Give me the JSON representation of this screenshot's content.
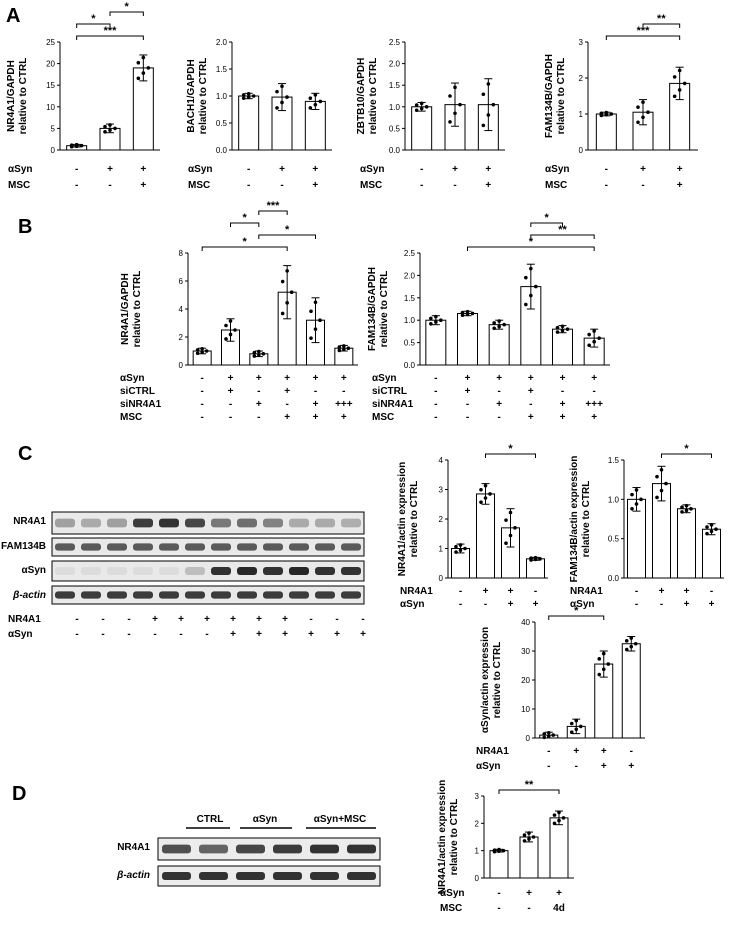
{
  "panels": {
    "A": "A",
    "B": "B",
    "C": "C",
    "D": "D"
  },
  "charts": [
    {
      "id": "A1",
      "ylabel_lines": [
        "NR4A1/GAPDH",
        "relative to CTRL"
      ],
      "yticks": [
        "0",
        "5",
        "10",
        "15",
        "20",
        "25"
      ],
      "ylim": [
        0,
        25
      ],
      "values": [
        1.0,
        5.0,
        19.0
      ],
      "err": [
        0.3,
        1.0,
        3.0
      ],
      "rows": [
        {
          "label": "αSyn",
          "marks": [
            "-",
            "+",
            "+"
          ]
        },
        {
          "label": "MSC",
          "marks": [
            "-",
            "-",
            "+"
          ]
        }
      ],
      "sig": [
        {
          "a": 0,
          "b": 2,
          "text": "***"
        },
        {
          "a": 0,
          "b": 1,
          "text": "*"
        },
        {
          "a": 1,
          "b": 2,
          "text": "*"
        }
      ]
    },
    {
      "id": "A2",
      "ylabel_lines": [
        "BACH1/GAPDH",
        "relative to CTRL"
      ],
      "yticks": [
        "0.0",
        "0.5",
        "1.0",
        "1.5",
        "2.0"
      ],
      "ylim": [
        0,
        2
      ],
      "values": [
        1.0,
        0.98,
        0.9
      ],
      "err": [
        0.05,
        0.25,
        0.15
      ],
      "rows": [
        {
          "label": "αSyn",
          "marks": [
            "-",
            "+",
            "+"
          ]
        },
        {
          "label": "MSC",
          "marks": [
            "-",
            "-",
            "+"
          ]
        }
      ],
      "sig": []
    },
    {
      "id": "A3",
      "ylabel_lines": [
        "ZBTB10/GAPDH",
        "relative to CTRL"
      ],
      "yticks": [
        "0.0",
        "0.5",
        "1.0",
        "1.5",
        "2.0",
        "2.5"
      ],
      "ylim": [
        0,
        2.5
      ],
      "values": [
        1.0,
        1.05,
        1.05
      ],
      "err": [
        0.1,
        0.5,
        0.6
      ],
      "rows": [
        {
          "label": "αSyn",
          "marks": [
            "-",
            "+",
            "+"
          ]
        },
        {
          "label": "MSC",
          "marks": [
            "-",
            "-",
            "+"
          ]
        }
      ],
      "sig": []
    },
    {
      "id": "A4",
      "ylabel_lines": [
        "FAM134B/GAPDH",
        "relative to CTRL"
      ],
      "yticks": [
        "0",
        "1",
        "2",
        "3"
      ],
      "ylim": [
        0,
        3
      ],
      "values": [
        1.0,
        1.05,
        1.85
      ],
      "err": [
        0.05,
        0.35,
        0.45
      ],
      "rows": [
        {
          "label": "αSyn",
          "marks": [
            "-",
            "+",
            "+"
          ]
        },
        {
          "label": "MSC",
          "marks": [
            "-",
            "-",
            "+"
          ]
        }
      ],
      "sig": [
        {
          "a": 0,
          "b": 2,
          "text": "***"
        },
        {
          "a": 1,
          "b": 2,
          "text": "**"
        }
      ]
    },
    {
      "id": "B1",
      "ylabel_lines": [
        "NR4A1/GAPDH",
        "relative to CTRL"
      ],
      "yticks": [
        "0",
        "2",
        "4",
        "6",
        "8"
      ],
      "ylim": [
        0,
        8
      ],
      "values": [
        1.0,
        2.5,
        0.8,
        5.2,
        3.2,
        1.2
      ],
      "err": [
        0.2,
        0.8,
        0.2,
        1.9,
        1.6,
        0.2
      ],
      "rows": [
        {
          "label": "αSyn",
          "marks": [
            "-",
            "+",
            "+",
            "+",
            "+",
            "+"
          ]
        },
        {
          "label": "siCTRL",
          "marks": [
            "-",
            "+",
            "-",
            "+",
            "-",
            "-"
          ]
        },
        {
          "label": "siNR4A1",
          "marks": [
            "-",
            "-",
            "+",
            "-",
            "+",
            "+++"
          ]
        },
        {
          "label": "MSC",
          "marks": [
            "-",
            "-",
            "-",
            "+",
            "+",
            "+"
          ]
        }
      ],
      "sig": [
        {
          "a": 0,
          "b": 3,
          "text": "*"
        },
        {
          "a": 2,
          "b": 4,
          "text": "*"
        },
        {
          "a": 1,
          "b": 2,
          "text": "*"
        },
        {
          "a": 2,
          "b": 3,
          "text": "***"
        }
      ]
    },
    {
      "id": "B2",
      "ylabel_lines": [
        "FAM134B/GAPDH",
        "relative to CTRL"
      ],
      "yticks": [
        "0.0",
        "0.5",
        "1.0",
        "1.5",
        "2.0",
        "2.5"
      ],
      "ylim": [
        0,
        2.5
      ],
      "values": [
        1.0,
        1.15,
        0.9,
        1.75,
        0.8,
        0.6
      ],
      "err": [
        0.1,
        0.05,
        0.1,
        0.5,
        0.08,
        0.2
      ],
      "rows": [
        {
          "label": "αSyn",
          "marks": [
            "-",
            "+",
            "+",
            "+",
            "+",
            "+"
          ]
        },
        {
          "label": "siCTRL",
          "marks": [
            "-",
            "+",
            "-",
            "+",
            "-",
            "-"
          ]
        },
        {
          "label": "siNR4A1",
          "marks": [
            "-",
            "-",
            "+",
            "-",
            "+",
            "+++"
          ]
        },
        {
          "label": "MSC",
          "marks": [
            "-",
            "-",
            "-",
            "+",
            "+",
            "+"
          ]
        }
      ],
      "sig": [
        {
          "a": 1,
          "b": 5,
          "text": "*"
        },
        {
          "a": 3,
          "b": 5,
          "text": "**"
        },
        {
          "a": 3,
          "b": 4,
          "text": "*"
        }
      ]
    },
    {
      "id": "C1",
      "ylabel_lines": [
        "NR4A1/actin expression",
        "relative to CTRL"
      ],
      "yticks": [
        "0",
        "1",
        "2",
        "3",
        "4"
      ],
      "ylim": [
        0,
        4
      ],
      "values": [
        1.0,
        2.85,
        1.7,
        0.65
      ],
      "err": [
        0.15,
        0.35,
        0.65,
        0.05
      ],
      "rows": [
        {
          "label": "NR4A1",
          "marks": [
            "-",
            "+",
            "+",
            "-"
          ]
        },
        {
          "label": "αSyn",
          "marks": [
            "-",
            "-",
            "+",
            "+"
          ]
        }
      ],
      "sig": [
        {
          "a": 1,
          "b": 3,
          "text": "*"
        }
      ]
    },
    {
      "id": "C2",
      "ylabel_lines": [
        "FAM134B/actin expression",
        "relative to CTRL"
      ],
      "yticks": [
        "0.0",
        "0.5",
        "1.0",
        "1.5"
      ],
      "ylim": [
        0,
        1.5
      ],
      "values": [
        1.0,
        1.2,
        0.88,
        0.62
      ],
      "err": [
        0.15,
        0.22,
        0.05,
        0.07
      ],
      "rows": [
        {
          "label": "NR4A1",
          "marks": [
            "-",
            "+",
            "+",
            "-"
          ]
        },
        {
          "label": "αSyn",
          "marks": [
            "-",
            "-",
            "+",
            "+"
          ]
        }
      ],
      "sig": [
        {
          "a": 1,
          "b": 3,
          "text": "*"
        }
      ]
    },
    {
      "id": "C3",
      "ylabel_lines": [
        "αSyn/actin expression",
        "relative to CTRL"
      ],
      "yticks": [
        "0",
        "10",
        "20",
        "30",
        "40"
      ],
      "ylim": [
        0,
        40
      ],
      "values": [
        1.0,
        4.0,
        25.5,
        32.5
      ],
      "err": [
        1.0,
        2.5,
        4.5,
        2.5
      ],
      "rows": [
        {
          "label": "NR4A1",
          "marks": [
            "-",
            "+",
            "+",
            "-"
          ]
        },
        {
          "label": "αSyn",
          "marks": [
            "-",
            "-",
            "+",
            "+"
          ]
        }
      ],
      "sig": [
        {
          "a": 0,
          "b": 2,
          "text": "*"
        }
      ]
    },
    {
      "id": "D1",
      "ylabel_lines": [
        "NR4A1/actin expression",
        "relative to CTRL"
      ],
      "yticks": [
        "0",
        "1",
        "2",
        "3"
      ],
      "ylim": [
        0,
        3
      ],
      "values": [
        1.0,
        1.5,
        2.2
      ],
      "err": [
        0.05,
        0.18,
        0.25
      ],
      "rows": [
        {
          "label": "αSyn",
          "marks": [
            "-",
            "+",
            "+"
          ]
        },
        {
          "label": "MSC",
          "marks": [
            "-",
            "-",
            "4d"
          ]
        }
      ],
      "sig": [
        {
          "a": 0,
          "b": 2,
          "text": "**"
        }
      ]
    }
  ],
  "blotC": {
    "rows": [
      "NR4A1",
      "FAM134B",
      "αSyn",
      "β-actin"
    ],
    "lane_rows": [
      {
        "label": "NR4A1",
        "marks": [
          "-",
          "-",
          "-",
          "+",
          "+",
          "+",
          "+",
          "+",
          "+",
          "-",
          "-",
          "-"
        ]
      },
      {
        "label": "αSyn",
        "marks": [
          "-",
          "-",
          "-",
          "-",
          "-",
          "-",
          "+",
          "+",
          "+",
          "+",
          "+",
          "+"
        ]
      }
    ]
  },
  "blotD": {
    "groups": [
      "CTRL",
      "αSyn",
      "αSyn+MSC"
    ],
    "rows": [
      "NR4A1",
      "β-actin"
    ]
  }
}
